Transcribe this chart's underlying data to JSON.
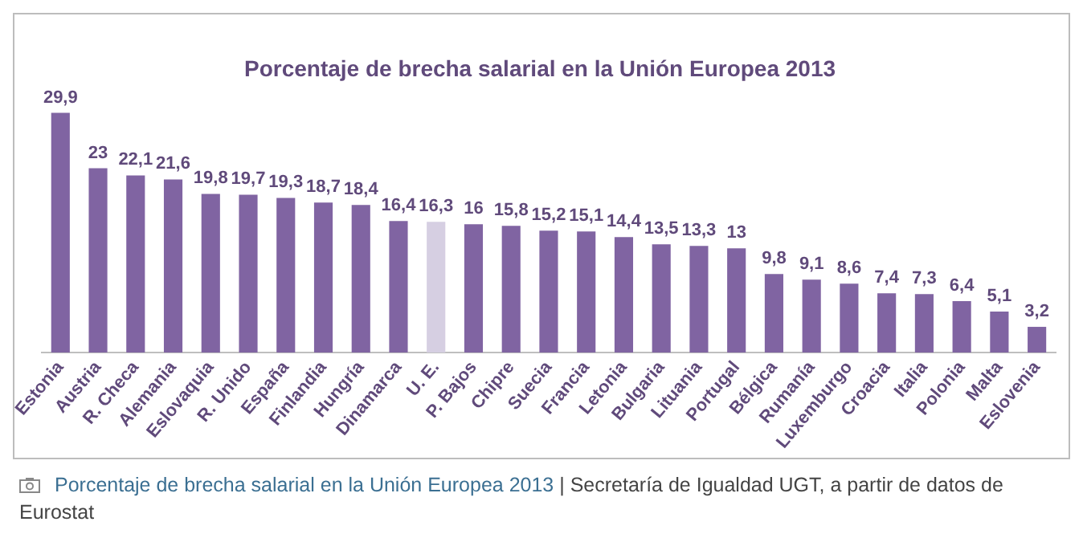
{
  "chart_data": {
    "type": "bar",
    "title": "Porcentaje de brecha salarial en la Unión Europea 2013",
    "categories": [
      "Estonia",
      "Austria",
      "R. Checa",
      "Alemania",
      "Eslovaquia",
      "R. Unido",
      "España",
      "Finlandia",
      "Hungría",
      "Dinamarca",
      "U. E.",
      "P. Bajos",
      "Chipre",
      "Suecia",
      "Francia",
      "Letonia",
      "Bulgaria",
      "Lituania",
      "Portugal",
      "Bélgica",
      "Rumanía",
      "Luxemburgo",
      "Croacia",
      "Italia",
      "Polonia",
      "Malta",
      "Eslovenia"
    ],
    "values": [
      29.9,
      23,
      22.1,
      21.6,
      19.8,
      19.7,
      19.3,
      18.7,
      18.4,
      16.4,
      16.3,
      16,
      15.8,
      15.2,
      15.1,
      14.4,
      13.5,
      13.3,
      13,
      9.8,
      9.1,
      8.6,
      7.4,
      7.3,
      6.4,
      5.1,
      3.2
    ],
    "value_labels": [
      "29,9",
      "23",
      "22,1",
      "21,6",
      "19,8",
      "19,7",
      "19,3",
      "18,7",
      "18,4",
      "16,4",
      "16,3",
      "16",
      "15,8",
      "15,2",
      "15,1",
      "14,4",
      "13,5",
      "13,3",
      "13",
      "9,8",
      "9,1",
      "8,6",
      "7,4",
      "7,3",
      "6,4",
      "5,1",
      "3,2"
    ],
    "colors": [
      "#8064a2",
      "#8064a2",
      "#8064a2",
      "#8064a2",
      "#8064a2",
      "#8064a2",
      "#8064a2",
      "#8064a2",
      "#8064a2",
      "#8064a2",
      "#d6cfe2",
      "#8064a2",
      "#8064a2",
      "#8064a2",
      "#8064a2",
      "#8064a2",
      "#8064a2",
      "#8064a2",
      "#8064a2",
      "#8064a2",
      "#8064a2",
      "#8064a2",
      "#8064a2",
      "#8064a2",
      "#8064a2",
      "#8064a2",
      "#8064a2"
    ],
    "tick_labels": "x",
    "grid": false,
    "legend": false,
    "annotations": [
      "Porcentaje de brecha salarial en la Unión Europea 2013",
      "| Secretaría de Igualdad UGT, a partir de datos de Eurostat"
    ]
  }
}
